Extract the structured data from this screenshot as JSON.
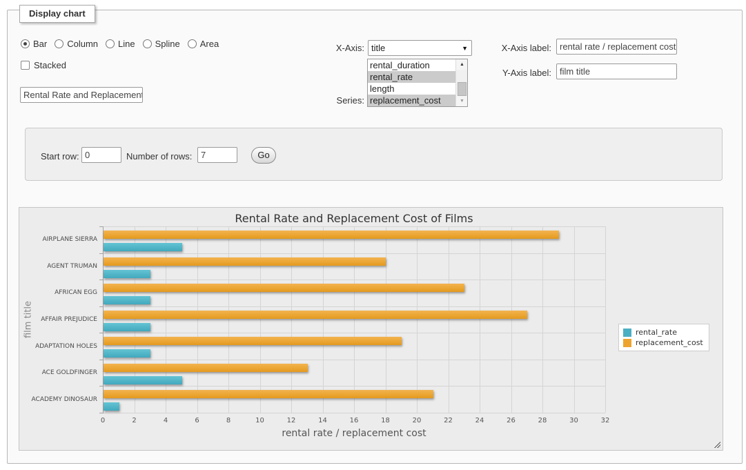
{
  "panel": {
    "legend": "Display chart"
  },
  "chart_types": {
    "options": [
      {
        "label": "Bar",
        "selected": true
      },
      {
        "label": "Column",
        "selected": false
      },
      {
        "label": "Line",
        "selected": false
      },
      {
        "label": "Spline",
        "selected": false
      },
      {
        "label": "Area",
        "selected": false
      }
    ]
  },
  "stacked": {
    "label": "Stacked",
    "checked": false
  },
  "title_input": {
    "value": "Rental Rate and Replacement Cost of Films"
  },
  "x_axis": {
    "label": "X-Axis:",
    "selected": "title"
  },
  "series_select": {
    "label": "Series:",
    "options": [
      {
        "label": "rental_duration",
        "selected": false
      },
      {
        "label": "rental_rate",
        "selected": true
      },
      {
        "label": "length",
        "selected": false
      },
      {
        "label": "replacement_cost",
        "selected": true
      }
    ]
  },
  "x_axis_label": {
    "label": "X-Axis label:",
    "value": "rental rate / replacement cost"
  },
  "y_axis_label": {
    "label": "Y-Axis label:",
    "value": "film title"
  },
  "rows_panel": {
    "start_row_label": "Start row:",
    "start_row_value": "0",
    "num_rows_label": "Number of rows:",
    "num_rows_value": "7",
    "go_label": "Go"
  },
  "chart_data": {
    "type": "bar",
    "title": "Rental Rate and Replacement Cost of Films",
    "categories": [
      "AIRPLANE SIERRA",
      "AGENT TRUMAN",
      "AFRICAN EGG",
      "AFFAIR PREJUDICE",
      "ADAPTATION HOLES",
      "ACE GOLDFINGER",
      "ACADEMY DINOSAUR"
    ],
    "series": [
      {
        "name": "rental_rate",
        "color": "#4BAFC3",
        "color_light": "#63c3d3",
        "color_dark": "#42a9bd",
        "values": [
          4.99,
          2.99,
          2.99,
          2.99,
          2.99,
          4.99,
          0.99
        ]
      },
      {
        "name": "replacement_cost",
        "color": "#EDA42F",
        "color_light": "#f3b34f",
        "color_dark": "#e49a1e",
        "values": [
          28.99,
          17.99,
          22.99,
          26.99,
          18.99,
          12.99,
          20.99
        ]
      }
    ],
    "bar_order_top_to_bottom": [
      "replacement_cost",
      "rental_rate"
    ],
    "xlabel": "rental rate / replacement cost",
    "ylabel": "film title",
    "xlim": [
      0,
      32
    ],
    "x_tick_step": 2,
    "grid": true,
    "legend_position": "right-middle"
  }
}
